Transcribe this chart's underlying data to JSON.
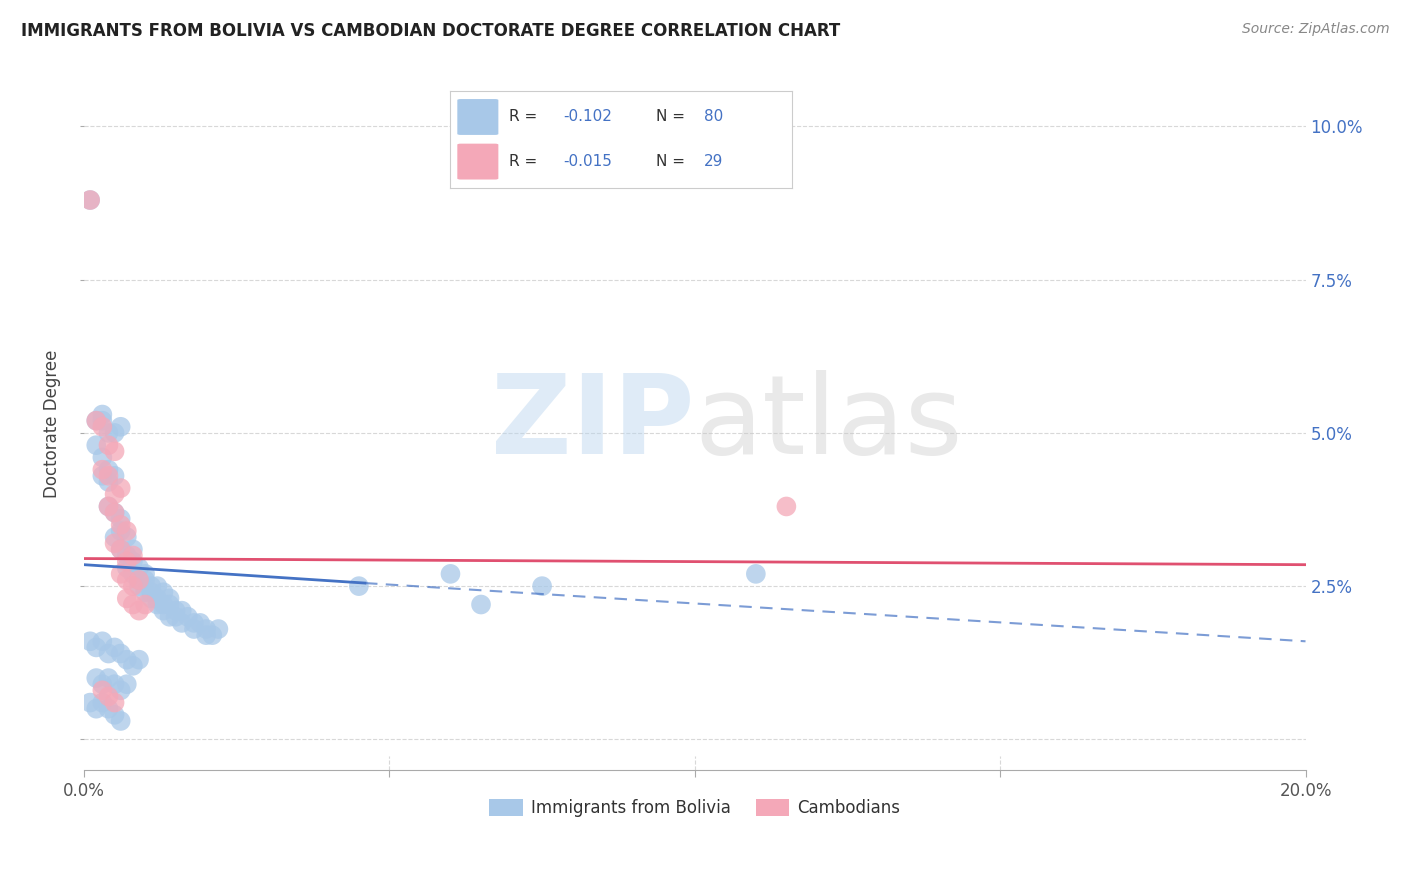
{
  "title": "IMMIGRANTS FROM BOLIVIA VS CAMBODIAN DOCTORATE DEGREE CORRELATION CHART",
  "source": "Source: ZipAtlas.com",
  "ylabel": "Doctorate Degree",
  "legend_blue_label": "Immigrants from Bolivia",
  "legend_pink_label": "Cambodians",
  "xlim": [
    0.0,
    0.2
  ],
  "ylim": [
    -0.005,
    0.108
  ],
  "xticks": [
    0.0,
    0.05,
    0.1,
    0.15,
    0.2
  ],
  "yticks": [
    0.0,
    0.025,
    0.05,
    0.075,
    0.1
  ],
  "blue_color": "#a8c8e8",
  "blue_line_color": "#4472c4",
  "pink_color": "#f4a8b8",
  "pink_line_color": "#e05070",
  "background_color": "#ffffff",
  "grid_color": "#d8d8d8",
  "title_color": "#222222",
  "source_color": "#888888",
  "right_axis_color": "#4472c4",
  "blue_scatter": [
    [
      0.001,
      0.088
    ],
    [
      0.002,
      0.052
    ],
    [
      0.003,
      0.052
    ],
    [
      0.003,
      0.053
    ],
    [
      0.004,
      0.05
    ],
    [
      0.005,
      0.05
    ],
    [
      0.006,
      0.051
    ],
    [
      0.002,
      0.048
    ],
    [
      0.003,
      0.046
    ],
    [
      0.004,
      0.044
    ],
    [
      0.003,
      0.043
    ],
    [
      0.004,
      0.042
    ],
    [
      0.005,
      0.043
    ],
    [
      0.004,
      0.038
    ],
    [
      0.005,
      0.037
    ],
    [
      0.006,
      0.036
    ],
    [
      0.005,
      0.033
    ],
    [
      0.006,
      0.034
    ],
    [
      0.007,
      0.033
    ],
    [
      0.006,
      0.031
    ],
    [
      0.007,
      0.03
    ],
    [
      0.008,
      0.031
    ],
    [
      0.007,
      0.028
    ],
    [
      0.008,
      0.029
    ],
    [
      0.009,
      0.028
    ],
    [
      0.008,
      0.027
    ],
    [
      0.009,
      0.026
    ],
    [
      0.01,
      0.027
    ],
    [
      0.009,
      0.025
    ],
    [
      0.01,
      0.026
    ],
    [
      0.011,
      0.025
    ],
    [
      0.01,
      0.024
    ],
    [
      0.011,
      0.024
    ],
    [
      0.012,
      0.025
    ],
    [
      0.011,
      0.023
    ],
    [
      0.012,
      0.023
    ],
    [
      0.013,
      0.024
    ],
    [
      0.012,
      0.022
    ],
    [
      0.013,
      0.022
    ],
    [
      0.014,
      0.023
    ],
    [
      0.013,
      0.021
    ],
    [
      0.014,
      0.022
    ],
    [
      0.015,
      0.021
    ],
    [
      0.014,
      0.02
    ],
    [
      0.015,
      0.02
    ],
    [
      0.016,
      0.021
    ],
    [
      0.016,
      0.019
    ],
    [
      0.017,
      0.02
    ],
    [
      0.018,
      0.019
    ],
    [
      0.018,
      0.018
    ],
    [
      0.019,
      0.019
    ],
    [
      0.02,
      0.018
    ],
    [
      0.02,
      0.017
    ],
    [
      0.021,
      0.017
    ],
    [
      0.022,
      0.018
    ],
    [
      0.001,
      0.016
    ],
    [
      0.002,
      0.015
    ],
    [
      0.003,
      0.016
    ],
    [
      0.004,
      0.014
    ],
    [
      0.005,
      0.015
    ],
    [
      0.006,
      0.014
    ],
    [
      0.007,
      0.013
    ],
    [
      0.008,
      0.012
    ],
    [
      0.009,
      0.013
    ],
    [
      0.002,
      0.01
    ],
    [
      0.003,
      0.009
    ],
    [
      0.004,
      0.01
    ],
    [
      0.005,
      0.009
    ],
    [
      0.006,
      0.008
    ],
    [
      0.007,
      0.009
    ],
    [
      0.001,
      0.006
    ],
    [
      0.002,
      0.005
    ],
    [
      0.003,
      0.006
    ],
    [
      0.004,
      0.005
    ],
    [
      0.005,
      0.004
    ],
    [
      0.006,
      0.003
    ],
    [
      0.06,
      0.027
    ],
    [
      0.075,
      0.025
    ],
    [
      0.11,
      0.027
    ],
    [
      0.065,
      0.022
    ],
    [
      0.045,
      0.025
    ]
  ],
  "pink_scatter": [
    [
      0.001,
      0.088
    ],
    [
      0.002,
      0.052
    ],
    [
      0.003,
      0.051
    ],
    [
      0.004,
      0.048
    ],
    [
      0.005,
      0.047
    ],
    [
      0.003,
      0.044
    ],
    [
      0.004,
      0.043
    ],
    [
      0.005,
      0.04
    ],
    [
      0.006,
      0.041
    ],
    [
      0.004,
      0.038
    ],
    [
      0.005,
      0.037
    ],
    [
      0.006,
      0.035
    ],
    [
      0.007,
      0.034
    ],
    [
      0.005,
      0.032
    ],
    [
      0.006,
      0.031
    ],
    [
      0.007,
      0.029
    ],
    [
      0.008,
      0.03
    ],
    [
      0.006,
      0.027
    ],
    [
      0.007,
      0.026
    ],
    [
      0.008,
      0.025
    ],
    [
      0.009,
      0.026
    ],
    [
      0.007,
      0.023
    ],
    [
      0.008,
      0.022
    ],
    [
      0.009,
      0.021
    ],
    [
      0.01,
      0.022
    ],
    [
      0.003,
      0.008
    ],
    [
      0.004,
      0.007
    ],
    [
      0.005,
      0.006
    ],
    [
      0.115,
      0.038
    ]
  ],
  "blue_trendline_solid": [
    [
      0.0,
      0.0285
    ],
    [
      0.046,
      0.0255
    ]
  ],
  "blue_trendline_dashed": [
    [
      0.046,
      0.0255
    ],
    [
      0.2,
      0.016
    ]
  ],
  "pink_trendline": [
    [
      0.0,
      0.0295
    ],
    [
      0.2,
      0.0285
    ]
  ]
}
